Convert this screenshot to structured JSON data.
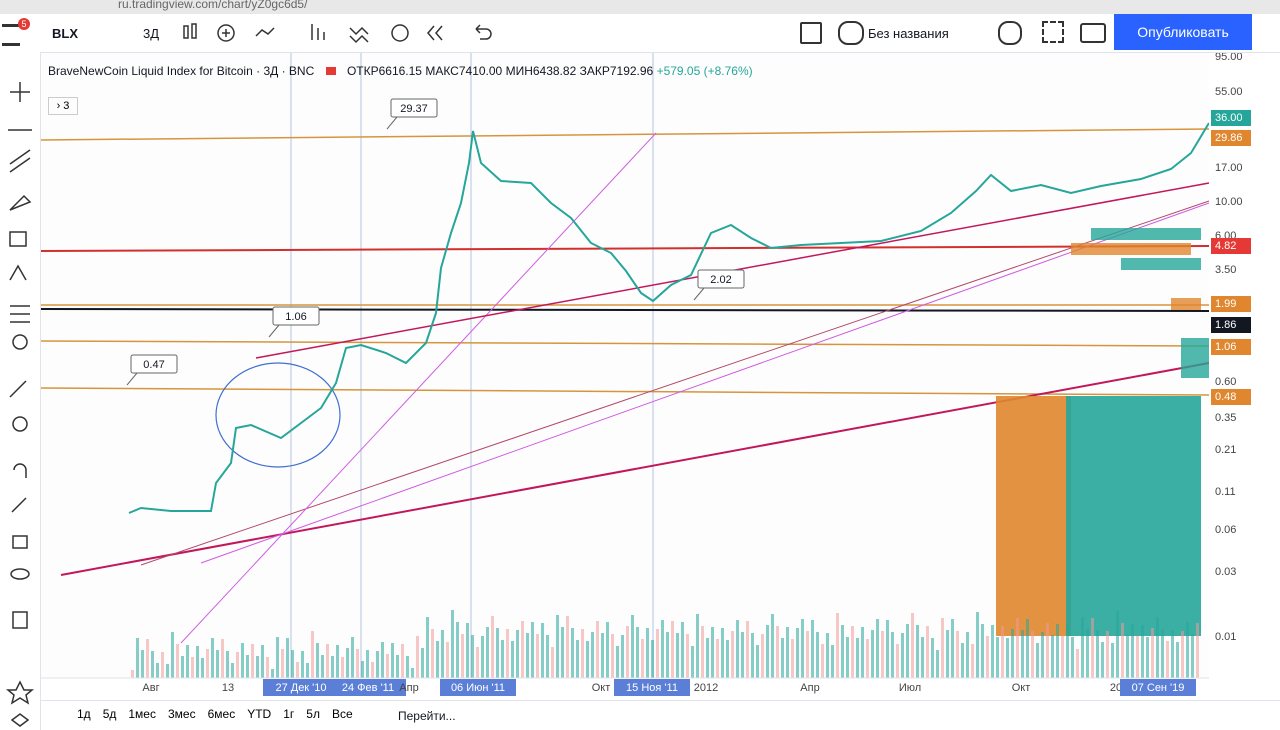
{
  "browser": {
    "url": "ru.tradingview.com/chart/yZ0gc6d5/"
  },
  "toolbar": {
    "badge": "5",
    "symbol": "BLX",
    "interval": "3Д",
    "layout_name": "Без названия",
    "publish": "Опубликовать"
  },
  "legend": {
    "title": "BraveNewCoin Liquid Index for Bitcoin · 3Д · BNC",
    "open": "ОТКР6616.15",
    "high": "МАКС7410.00",
    "low": "МИН6438.82",
    "close": "ЗАКР7192.96",
    "change": "+579.05 (+8.76%)",
    "collapsed": "3"
  },
  "annotations": [
    {
      "label": "29.37"
    },
    {
      "label": "1.06"
    },
    {
      "label": "0.47"
    },
    {
      "label": "2.02"
    }
  ],
  "price_axis": [
    {
      "label": "95.00"
    },
    {
      "label": "55.00"
    },
    {
      "label": "36.00",
      "color": "#26a69a"
    },
    {
      "label": "29.86",
      "color": "#e0862e"
    },
    {
      "label": "17.00"
    },
    {
      "label": "10.00"
    },
    {
      "label": "6.00"
    },
    {
      "label": "4.82",
      "color": "#e53935"
    },
    {
      "label": "3.50"
    },
    {
      "label": "1.99",
      "color": "#e0862e"
    },
    {
      "label": "1.86",
      "color": "#131722"
    },
    {
      "label": "1.06",
      "color": "#e0862e"
    },
    {
      "label": "0.60"
    },
    {
      "label": "0.48",
      "color": "#e0862e"
    },
    {
      "label": "0.35"
    },
    {
      "label": "0.21"
    },
    {
      "label": "0.11"
    },
    {
      "label": "0.06"
    },
    {
      "label": "0.03"
    },
    {
      "label": "0.01"
    }
  ],
  "time_axis": [
    {
      "label": "Авг"
    },
    {
      "label": "13"
    },
    {
      "label": "27 Дек '10",
      "highlight": true
    },
    {
      "label": "24 Фев '11",
      "highlight": true
    },
    {
      "label": "Апр"
    },
    {
      "label": "06 Июн '11",
      "highlight": true
    },
    {
      "label": "Окт"
    },
    {
      "label": "15 Ноя '11",
      "highlight": true
    },
    {
      "label": "2012"
    },
    {
      "label": "Апр"
    },
    {
      "label": "Июл"
    },
    {
      "label": "Окт"
    },
    {
      "label": "20"
    },
    {
      "label": "07 Сен '19",
      "highlight": true
    }
  ],
  "ranges": [
    "1д",
    "5д",
    "1мес",
    "3мес",
    "6мес",
    "YTD",
    "1г",
    "5л",
    "Все"
  ],
  "goto": "Перейти..."
}
